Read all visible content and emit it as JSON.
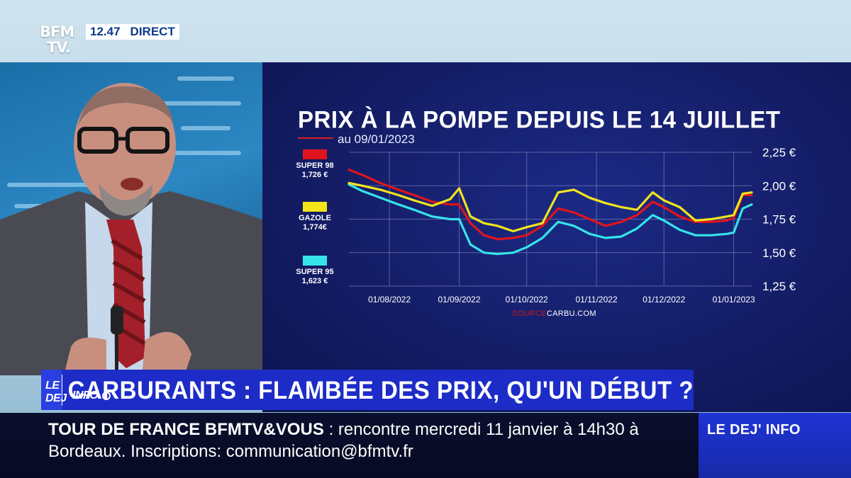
{
  "channel": {
    "logo_line1": "BFM",
    "logo_line2": "TV.",
    "time": "12.47",
    "live_label": "DIRECT"
  },
  "chart": {
    "title": "PRIX À LA POMPE DEPUIS LE 14 JUILLET",
    "subtitle": "au 09/01/2023",
    "source_prefix": "SOURCE",
    "source_name": "CARBU.COM"
  },
  "chart_data": {
    "type": "line",
    "x": [
      "2022-07-14",
      "2022-07-20",
      "2022-07-28",
      "2022-08-05",
      "2022-08-12",
      "2022-08-20",
      "2022-08-28",
      "2022-09-01",
      "2022-09-06",
      "2022-09-12",
      "2022-09-18",
      "2022-09-25",
      "2022-10-01",
      "2022-10-08",
      "2022-10-15",
      "2022-10-22",
      "2022-10-29",
      "2022-11-05",
      "2022-11-12",
      "2022-11-19",
      "2022-11-26",
      "2022-12-01",
      "2022-12-08",
      "2022-12-15",
      "2022-12-22",
      "2022-12-29",
      "2023-01-01",
      "2023-01-05",
      "2023-01-09"
    ],
    "x_ticks": [
      "01/08/2022",
      "01/09/2022",
      "01/10/2022",
      "01/11/2022",
      "01/12/2022",
      "01/01/2023"
    ],
    "y_ticks": [
      "2,25 €",
      "2,00 €",
      "1,75 €",
      "1,50 €",
      "1,25 €"
    ],
    "ylim": [
      1.25,
      2.25
    ],
    "grid": true,
    "series": [
      {
        "name": "SUPER 98",
        "label": "1,726 €",
        "color": "#e0141e",
        "values": [
          2.12,
          2.08,
          2.02,
          1.97,
          1.93,
          1.88,
          1.86,
          1.86,
          1.72,
          1.63,
          1.6,
          1.61,
          1.63,
          1.7,
          1.83,
          1.8,
          1.75,
          1.7,
          1.73,
          1.78,
          1.88,
          1.84,
          1.77,
          1.73,
          1.73,
          1.74,
          1.76,
          1.93,
          1.93
        ]
      },
      {
        "name": "GAZOLE",
        "label": "1,774€",
        "color": "#f2e51b",
        "values": [
          2.02,
          2.0,
          1.97,
          1.93,
          1.89,
          1.85,
          1.9,
          1.98,
          1.77,
          1.72,
          1.7,
          1.66,
          1.69,
          1.72,
          1.95,
          1.97,
          1.91,
          1.87,
          1.84,
          1.82,
          1.95,
          1.89,
          1.84,
          1.74,
          1.75,
          1.77,
          1.78,
          1.94,
          1.95
        ]
      },
      {
        "name": "SUPER 95",
        "label": "1,623 €",
        "color": "#35e4ea",
        "values": [
          2.01,
          1.96,
          1.91,
          1.86,
          1.82,
          1.77,
          1.75,
          1.75,
          1.56,
          1.5,
          1.49,
          1.5,
          1.54,
          1.61,
          1.73,
          1.7,
          1.64,
          1.61,
          1.62,
          1.68,
          1.78,
          1.74,
          1.67,
          1.63,
          1.63,
          1.64,
          1.65,
          1.83,
          1.86
        ]
      }
    ]
  },
  "banner": {
    "show_logo_a": "LE DEJ",
    "show_logo_b": "INFO",
    "headline": "CARBURANTS : FLAMBÉE DES PRIX, QU'UN DÉBUT ?"
  },
  "ticker": {
    "head": "TOUR DE FRANCE BFMTV&VOUS",
    "separator": " : ",
    "body": "rencontre mercredi 11 janvier à 14h30 à Bordeaux. Inscriptions: communication@bfmtv.fr"
  },
  "show_tag": {
    "label": "LE DEJ' INFO"
  },
  "colors": {
    "brand_blue": "#1d2cc7",
    "live_text": "#0b3b8c",
    "chart_bg": "#141d66"
  }
}
